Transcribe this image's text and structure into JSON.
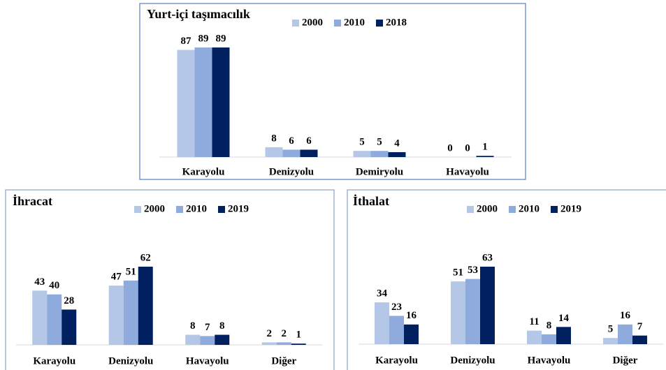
{
  "chart_data": [
    {
      "type": "bar",
      "title": "Yurt-içi taşımacılık",
      "categories": [
        "Karayolu",
        "Denizyolu",
        "Demiryolu",
        "Havayolu"
      ],
      "series": [
        {
          "name": "2000",
          "color": "#b4c7e7",
          "values": [
            87,
            8,
            5,
            0
          ]
        },
        {
          "name": "2010",
          "color": "#8faadc",
          "values": [
            89,
            6,
            5,
            0
          ]
        },
        {
          "name": "2018",
          "color": "#002060",
          "values": [
            89,
            6,
            4,
            1
          ]
        }
      ]
    },
    {
      "type": "bar",
      "title": "İhracat",
      "categories": [
        "Karayolu",
        "Denizyolu",
        "Havayolu",
        "Diğer"
      ],
      "series": [
        {
          "name": "2000",
          "color": "#b4c7e7",
          "values": [
            43,
            47,
            8,
            2
          ]
        },
        {
          "name": "2010",
          "color": "#8faadc",
          "values": [
            40,
            51,
            7,
            2
          ]
        },
        {
          "name": "2019",
          "color": "#002060",
          "values": [
            28,
            62,
            8,
            1
          ]
        }
      ]
    },
    {
      "type": "bar",
      "title": "İthalat",
      "categories": [
        "Karayolu",
        "Denizyolu",
        "Havayolu",
        "Diğer"
      ],
      "series": [
        {
          "name": "2000",
          "color": "#b4c7e7",
          "values": [
            34,
            51,
            11,
            5
          ]
        },
        {
          "name": "2010",
          "color": "#8faadc",
          "values": [
            23,
            53,
            8,
            16
          ]
        },
        {
          "name": "2019",
          "color": "#002060",
          "values": [
            16,
            63,
            14,
            7
          ]
        }
      ]
    }
  ]
}
